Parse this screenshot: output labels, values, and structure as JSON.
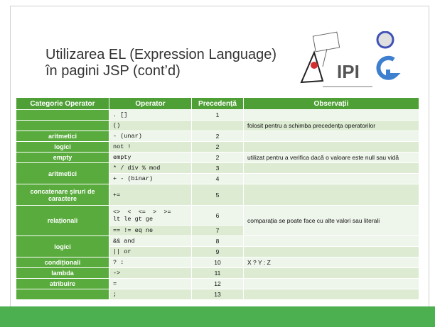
{
  "title": {
    "line1": "Utilizarea EL (Expression Language)",
    "line2": "în pagini JSP (cont’d)"
  },
  "logo": {
    "text": "IPI"
  },
  "table": {
    "header": [
      "Categorie Operator",
      "Operator",
      "Precedență",
      "Observații"
    ],
    "rows": [
      [
        ". []",
        "1"
      ],
      [
        "()",
        "folosit pentru a schimba precedența operatorilor"
      ],
      [
        "aritmetici",
        "- (unar)",
        "2"
      ],
      [
        "logici",
        "not !",
        "2"
      ],
      [
        "empty",
        "empty",
        "2",
        "utilizat pentru a verifica dacă o valoare este null sau vidă"
      ],
      [
        "aritmetici",
        "* / div % mod",
        "3"
      ],
      [
        "+ - (binar)",
        "4"
      ],
      [
        "concatenare șiruri de caractere",
        "+=",
        "5"
      ],
      [
        "relaționali",
        "<>  <  <=  >  >=",
        "lt le gt ge",
        "6",
        "comparația se poate face cu alte valori sau literali"
      ],
      [
        "== != eq ne",
        "7"
      ],
      [
        "logici",
        "&& and",
        "8"
      ],
      [
        "|| or",
        "9"
      ],
      [
        "condiționali",
        "? :",
        "10",
        "X ? Y : Z"
      ],
      [
        "lambda",
        "->",
        "11"
      ],
      [
        "atribuire",
        "=",
        "12"
      ],
      [
        ";",
        "13"
      ]
    ]
  }
}
